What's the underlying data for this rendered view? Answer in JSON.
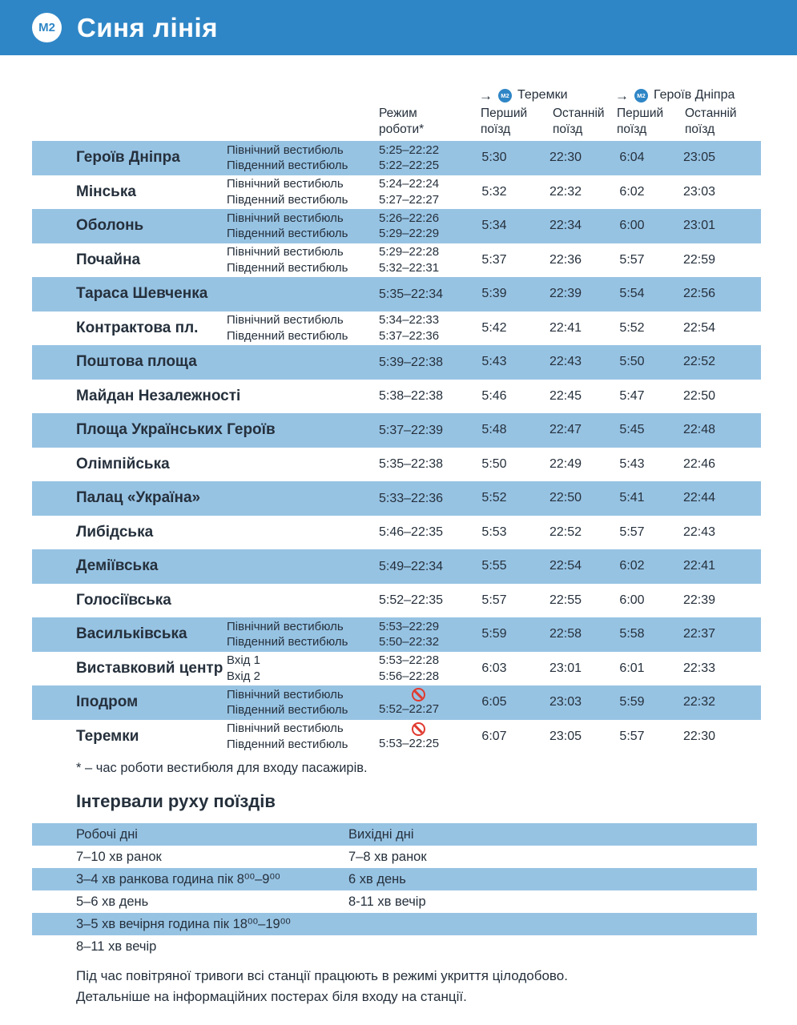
{
  "header": {
    "badge": "M2",
    "title": "Синя лінія"
  },
  "colors": {
    "header_blue": "#2f86c6",
    "row_blue": "#97c3e3",
    "text": "#25303c",
    "closed_red": "#e03a2f"
  },
  "table": {
    "columns": {
      "regime": [
        "Режим",
        "роботи*"
      ],
      "first": [
        "Перший",
        "поїзд"
      ],
      "last": [
        "Останній",
        "поїзд"
      ]
    },
    "directions": [
      {
        "arrow": "→",
        "badge": "M2",
        "label": "Теремки"
      },
      {
        "arrow": "→",
        "badge": "M2",
        "label": "Героїв Дніпра"
      }
    ]
  },
  "stations": [
    {
      "name": "Героїв Дніпра",
      "entries": [
        {
          "label": "Північний вестибюль",
          "time": "5:25–22:22"
        },
        {
          "label": "Південний вестибюль",
          "time": "5:22–22:25"
        }
      ],
      "times": [
        "5:30",
        "22:30",
        "6:04",
        "23:05"
      ]
    },
    {
      "name": "Мінська",
      "entries": [
        {
          "label": "Північний вестибюль",
          "time": "5:24–22:24"
        },
        {
          "label": "Південний вестибюль",
          "time": "5:27–22:27"
        }
      ],
      "times": [
        "5:32",
        "22:32",
        "6:02",
        "23:03"
      ]
    },
    {
      "name": "Оболонь",
      "entries": [
        {
          "label": "Північний вестибюль",
          "time": "5:26–22:26"
        },
        {
          "label": "Південний вестибюль",
          "time": "5:29–22:29"
        }
      ],
      "times": [
        "5:34",
        "22:34",
        "6:00",
        "23:01"
      ]
    },
    {
      "name": "Почайна",
      "entries": [
        {
          "label": "Північний вестибюль",
          "time": "5:29–22:28"
        },
        {
          "label": "Південний вестибюль",
          "time": "5:32–22:31"
        }
      ],
      "times": [
        "5:37",
        "22:36",
        "5:57",
        "22:59"
      ]
    },
    {
      "name": "Тараса Шевченка",
      "entries": [
        {
          "label": "",
          "time": "5:35–22:34"
        }
      ],
      "times": [
        "5:39",
        "22:39",
        "5:54",
        "22:56"
      ]
    },
    {
      "name": "Контрактова пл.",
      "entries": [
        {
          "label": "Північний вестибюль",
          "time": "5:34–22:33"
        },
        {
          "label": "Південний вестибюль",
          "time": "5:37–22:36"
        }
      ],
      "times": [
        "5:42",
        "22:41",
        "5:52",
        "22:54"
      ]
    },
    {
      "name": "Поштова площа",
      "entries": [
        {
          "label": "",
          "time": "5:39–22:38"
        }
      ],
      "times": [
        "5:43",
        "22:43",
        "5:50",
        "22:52"
      ]
    },
    {
      "name": "Майдан Незалежності",
      "entries": [
        {
          "label": "",
          "time": "5:38–22:38"
        }
      ],
      "times": [
        "5:46",
        "22:45",
        "5:47",
        "22:50"
      ]
    },
    {
      "name": "Площа Українських Героїв",
      "entries": [
        {
          "label": "",
          "time": "5:37–22:39"
        }
      ],
      "times": [
        "5:48",
        "22:47",
        "5:45",
        "22:48"
      ]
    },
    {
      "name": "Олімпійська",
      "entries": [
        {
          "label": "",
          "time": "5:35–22:38"
        }
      ],
      "times": [
        "5:50",
        "22:49",
        "5:43",
        "22:46"
      ]
    },
    {
      "name": "Палац «Україна»",
      "entries": [
        {
          "label": "",
          "time": "5:33–22:36"
        }
      ],
      "times": [
        "5:52",
        "22:50",
        "5:41",
        "22:44"
      ]
    },
    {
      "name": "Либідська",
      "entries": [
        {
          "label": "",
          "time": "5:46–22:35"
        }
      ],
      "times": [
        "5:53",
        "22:52",
        "5:57",
        "22:43"
      ]
    },
    {
      "name": "Деміївська",
      "entries": [
        {
          "label": "",
          "time": "5:49–22:34"
        }
      ],
      "times": [
        "5:55",
        "22:54",
        "6:02",
        "22:41"
      ]
    },
    {
      "name": "Голосіївська",
      "entries": [
        {
          "label": "",
          "time": "5:52–22:35"
        }
      ],
      "times": [
        "5:57",
        "22:55",
        "6:00",
        "22:39"
      ]
    },
    {
      "name": "Васильківська",
      "entries": [
        {
          "label": "Північний вестибюль",
          "time": "5:53–22:29"
        },
        {
          "label": "Південний вестибюль",
          "time": "5:50–22:32"
        }
      ],
      "times": [
        "5:59",
        "22:58",
        "5:58",
        "22:37"
      ]
    },
    {
      "name": "Виставковий центр",
      "entries": [
        {
          "label": "Вхід 1",
          "time": "5:53–22:28"
        },
        {
          "label": "Вхід 2",
          "time": "5:56–22:28"
        }
      ],
      "times": [
        "6:03",
        "23:01",
        "6:01",
        "22:33"
      ]
    },
    {
      "name": "Іподром",
      "entries": [
        {
          "label": "Північний вестибюль",
          "time": "",
          "closed": true
        },
        {
          "label": "Південний вестибюль",
          "time": "5:52–22:27"
        }
      ],
      "times": [
        "6:05",
        "23:03",
        "5:59",
        "22:32"
      ]
    },
    {
      "name": "Теремки",
      "entries": [
        {
          "label": "Північний вестибюль",
          "time": "",
          "closed": true
        },
        {
          "label": "Південний вестибюль",
          "time": "5:53–22:25"
        }
      ],
      "times": [
        "6:07",
        "23:05",
        "5:57",
        "22:30"
      ]
    }
  ],
  "footnote": "* – час роботи вестибюля для входу пасажирів.",
  "intervals": {
    "title": "Інтервали руху поїздів",
    "header": [
      "Робочі дні",
      "Вихідні дні"
    ],
    "rows": [
      [
        "7–10 хв ранок",
        "7–8 хв ранок"
      ],
      [
        "3–4 хв ранкова година пік 8⁰⁰–9⁰⁰",
        "6 хв день"
      ],
      [
        "5–6 хв день",
        "8-11 хв вечір"
      ],
      [
        "3–5 хв вечірня година пік 18⁰⁰–19⁰⁰",
        ""
      ],
      [
        "8–11 хв вечір",
        ""
      ]
    ]
  },
  "note": [
    "Під час повітряної тривоги всі станції працюють в режимі укриття цілодобово.",
    "Детальніше на інформаційних постерах біля входу на станції."
  ]
}
